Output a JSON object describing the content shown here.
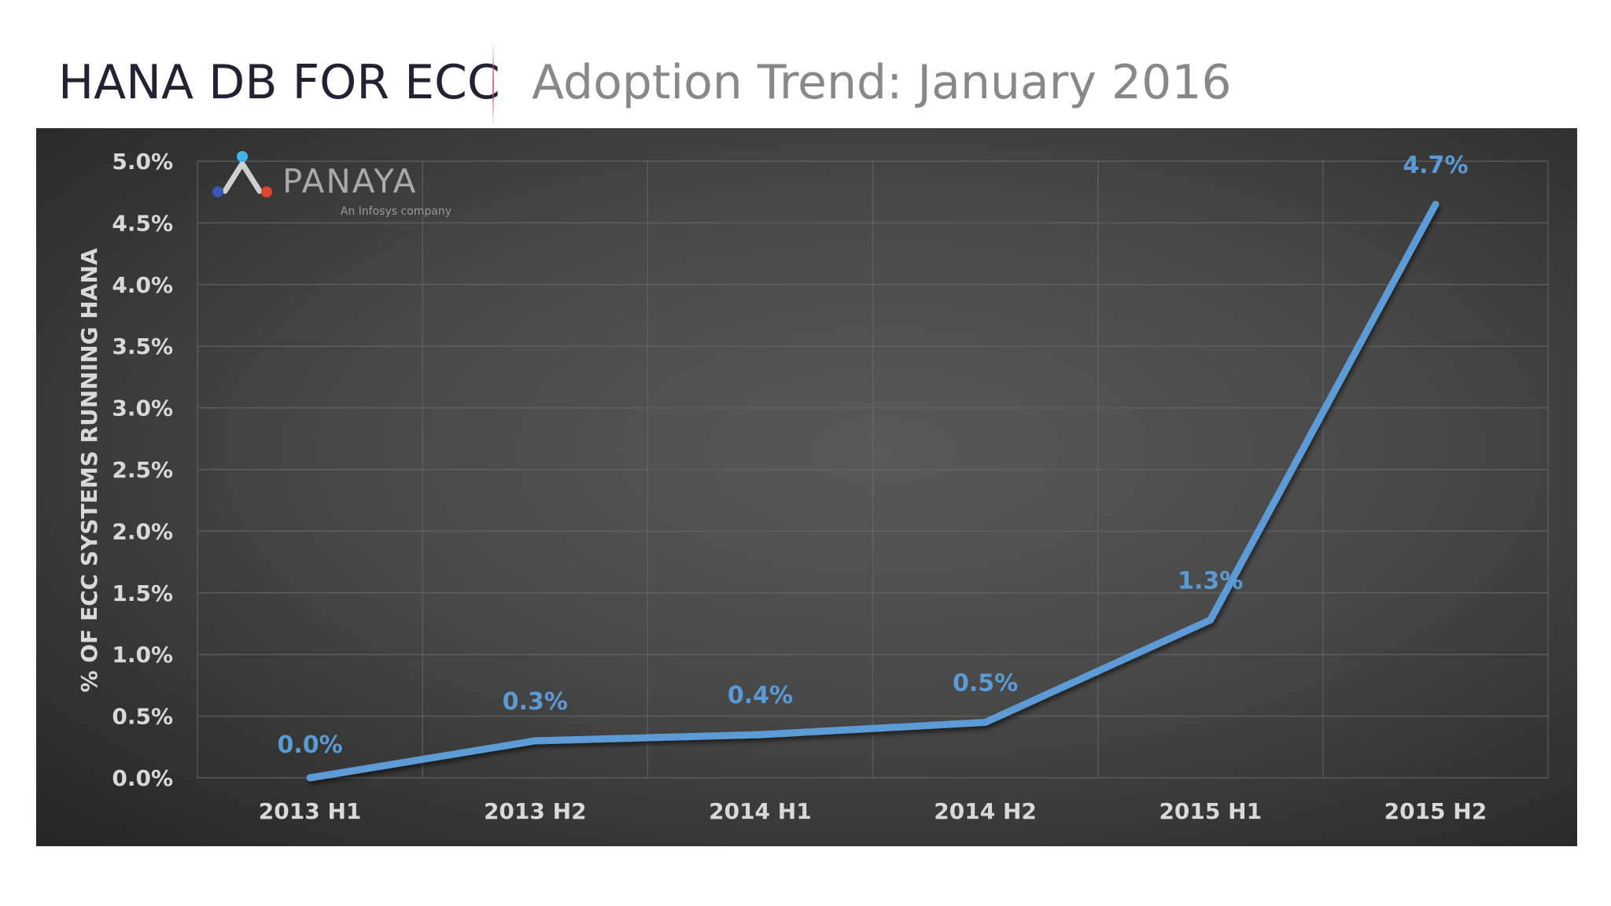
{
  "header": {
    "title": "HANA DB FOR ECC",
    "subtitle": "Adoption Trend: January 2016"
  },
  "logo": {
    "name": "PANAYA",
    "tagline": "An Infosys company",
    "dot_colors": [
      "#3fb6e8",
      "#3a56b8",
      "#e0452b"
    ]
  },
  "colors": {
    "line": "#5b9bd5",
    "panel": "#3c3c3c",
    "tick_text": "#d9d9d9",
    "data_label": "#5b9bd5"
  },
  "chart_data": {
    "type": "line",
    "categories": [
      "2013 H1",
      "2013 H2",
      "2014 H1",
      "2014 H2",
      "2015 H1",
      "2015 H2"
    ],
    "values": [
      0.0,
      0.3,
      0.35,
      0.45,
      1.28,
      4.65
    ],
    "data_labels": [
      "0.0%",
      "0.3%",
      "0.4%",
      "0.5%",
      "1.3%",
      "4.7%"
    ],
    "title": "",
    "xlabel": "",
    "ylabel": "% OF ECC SYSTEMS RUNNING HANA",
    "ylim": [
      0,
      5
    ],
    "y_ticks": [
      "0.0%",
      "0.5%",
      "1.0%",
      "1.5%",
      "2.0%",
      "2.5%",
      "3.0%",
      "3.5%",
      "4.0%",
      "4.5%",
      "5.0%"
    ],
    "grid": true,
    "legend": "none"
  }
}
